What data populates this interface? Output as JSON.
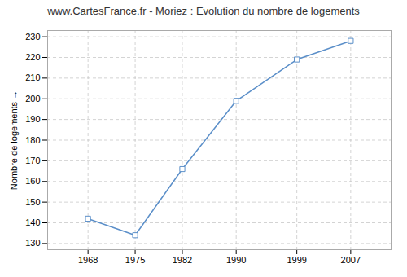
{
  "chart_data": {
    "type": "line",
    "title": "www.CartesFrance.fr - Moriez : Evolution du nombre de logements",
    "ylabel": "Nombre de logements",
    "x": [
      1968,
      1975,
      1982,
      1990,
      1999,
      2007
    ],
    "values": [
      142,
      134,
      166,
      199,
      219,
      228
    ],
    "color": "#5b8fc9",
    "marker": "square",
    "xlim": [
      1962,
      2013
    ],
    "ylim": [
      127,
      233
    ],
    "xticks": [
      1968,
      1975,
      1982,
      1990,
      1999,
      2007
    ],
    "yticks": [
      130,
      140,
      150,
      160,
      170,
      180,
      190,
      200,
      210,
      220,
      230
    ],
    "grid": true
  }
}
